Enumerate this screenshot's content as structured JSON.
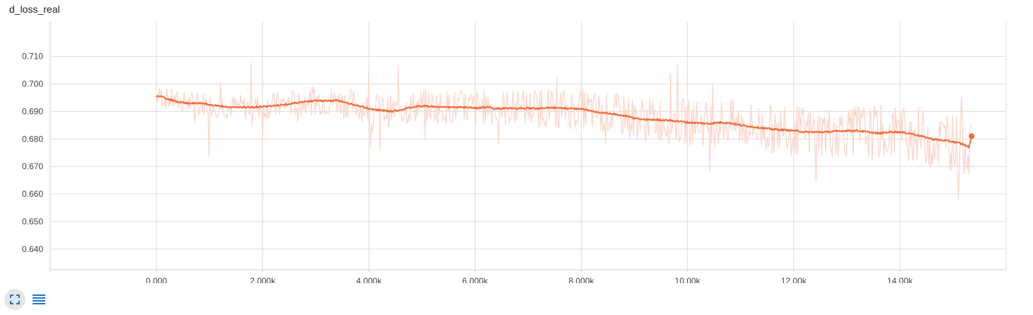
{
  "title": "d_loss_real",
  "colors": {
    "line": "#f26b3a",
    "raw": "#fbd7cb",
    "grid": "#dcdcdc",
    "icon": "#1976d2"
  },
  "controls": {
    "fullscreen_icon": "fullscreen-icon",
    "data_icon": "list-icon"
  },
  "chart_data": {
    "type": "line",
    "title": "d_loss_real",
    "xlabel": "",
    "ylabel": "",
    "xlim": [
      -2000,
      16000
    ],
    "ylim": [
      0.6325,
      0.7225
    ],
    "x_ticks": [
      0,
      2000,
      4000,
      6000,
      8000,
      10000,
      12000,
      14000
    ],
    "x_tick_labels": [
      "0.000",
      "2.000k",
      "4.000k",
      "6.000k",
      "8.000k",
      "10.00k",
      "12.00k",
      "14.00k"
    ],
    "y_ticks": [
      0.64,
      0.65,
      0.66,
      0.67,
      0.68,
      0.69,
      0.7,
      0.71
    ],
    "y_tick_labels": [
      "0.640",
      "0.650",
      "0.660",
      "0.670",
      "0.680",
      "0.690",
      "0.700",
      "0.710"
    ],
    "grid": true,
    "series": [
      {
        "x": [
          0,
          100,
          200,
          400,
          600,
          800,
          1000,
          1200,
          1400,
          1600,
          1800,
          2000,
          2200,
          2400,
          2600,
          2800,
          3000,
          3200,
          3400,
          3600,
          3800,
          4000,
          4200,
          4400,
          4600,
          4800,
          5000,
          5200,
          5400,
          5600,
          5800,
          6000,
          6200,
          6400,
          6600,
          6800,
          7000,
          7200,
          7400,
          7600,
          7800,
          8000,
          8200,
          8400,
          8600,
          8800,
          9000,
          9200,
          9400,
          9600,
          9800,
          10000,
          10200,
          10400,
          10600,
          10800,
          11000,
          11200,
          11400,
          11600,
          11800,
          12000,
          12200,
          12400,
          12600,
          12800,
          13000,
          13200,
          13400,
          13600,
          13800,
          14000,
          14200,
          14400,
          14600,
          14800,
          15000,
          15200,
          15300,
          15350
        ],
        "y": [
          0.6955,
          0.6955,
          0.6945,
          0.6935,
          0.693,
          0.693,
          0.6925,
          0.692,
          0.6915,
          0.6915,
          0.6915,
          0.6918,
          0.692,
          0.6925,
          0.693,
          0.6935,
          0.694,
          0.6938,
          0.694,
          0.693,
          0.692,
          0.691,
          0.6905,
          0.69,
          0.6905,
          0.6915,
          0.692,
          0.6918,
          0.6915,
          0.6915,
          0.6915,
          0.6912,
          0.6915,
          0.691,
          0.6912,
          0.691,
          0.6912,
          0.691,
          0.6915,
          0.6912,
          0.691,
          0.691,
          0.69,
          0.6895,
          0.689,
          0.6885,
          0.6875,
          0.687,
          0.687,
          0.6868,
          0.6865,
          0.686,
          0.6858,
          0.6855,
          0.686,
          0.6858,
          0.685,
          0.6845,
          0.684,
          0.6835,
          0.6833,
          0.683,
          0.6825,
          0.6825,
          0.6825,
          0.6828,
          0.683,
          0.683,
          0.6825,
          0.682,
          0.6825,
          0.6825,
          0.682,
          0.681,
          0.68,
          0.6795,
          0.679,
          0.678,
          0.677,
          0.681
        ]
      }
    ],
    "last_point": {
      "x": 15350,
      "y": 0.681
    }
  }
}
